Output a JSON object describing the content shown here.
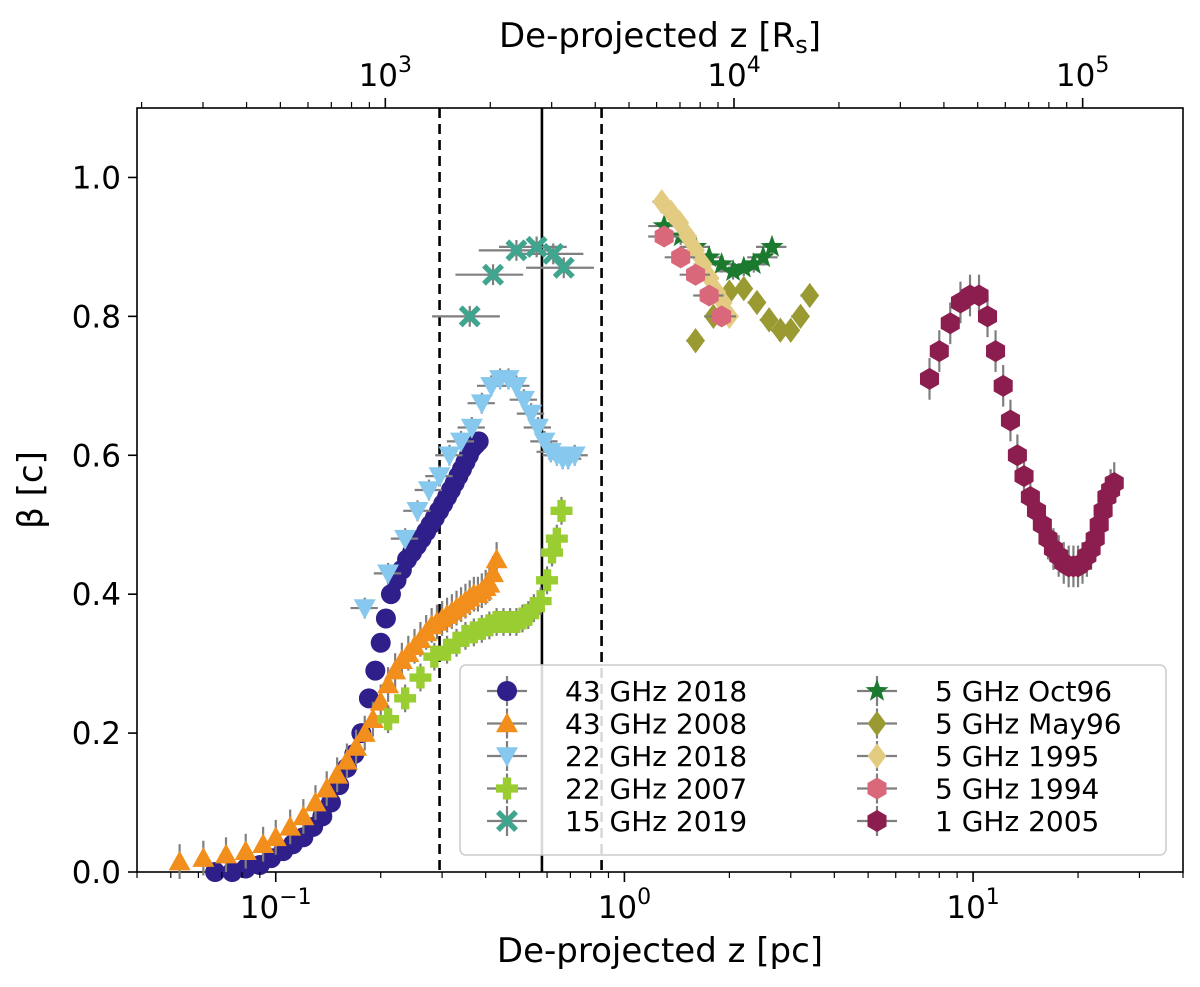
{
  "chart_data": {
    "type": "scatter",
    "xlabel": "De-projected z [pc]",
    "x2label_main": "De-projected z [R",
    "x2label_sub": "s",
    "x2label_end": "]",
    "ylabel": "β [c]",
    "xscale": "log",
    "xlim": [
      0.04,
      40
    ],
    "ylim": [
      0.0,
      1.1
    ],
    "x_ticks": [
      {
        "value": 0.1,
        "base": "10",
        "exp": "−1"
      },
      {
        "value": 1,
        "base": "10",
        "exp": "0"
      },
      {
        "value": 10,
        "base": "10",
        "exp": "1"
      }
    ],
    "top_axis_factor": 4850,
    "top_ticks": [
      {
        "value": 1000,
        "base": "10",
        "exp": "3"
      },
      {
        "value": 10000,
        "base": "10",
        "exp": "4"
      },
      {
        "value": 100000,
        "base": "10",
        "exp": "5"
      }
    ],
    "y_ticks": [
      "0.0",
      "0.2",
      "0.4",
      "0.6",
      "0.8",
      "1.0"
    ],
    "vlines": [
      {
        "x": 0.295,
        "style": "dashed"
      },
      {
        "x": 0.58,
        "style": "solid"
      },
      {
        "x": 0.86,
        "style": "dashed"
      }
    ],
    "legend_position": "lower-right",
    "series": [
      {
        "name": "43 GHz 2018",
        "color": "#2e1f8a",
        "marker": "circle",
        "x": [
          0.067,
          0.075,
          0.082,
          0.09,
          0.097,
          0.105,
          0.112,
          0.12,
          0.128,
          0.136,
          0.144,
          0.152,
          0.16,
          0.168,
          0.176,
          0.185,
          0.193,
          0.2,
          0.207,
          0.214,
          0.222,
          0.23,
          0.238,
          0.246,
          0.254,
          0.262,
          0.27,
          0.278,
          0.286,
          0.294,
          0.302,
          0.31,
          0.318,
          0.326,
          0.334,
          0.342,
          0.35,
          0.358,
          0.366,
          0.374,
          0.382
        ],
        "y": [
          0.0,
          0.0,
          0.005,
          0.01,
          0.02,
          0.03,
          0.04,
          0.05,
          0.065,
          0.08,
          0.1,
          0.125,
          0.15,
          0.17,
          0.2,
          0.25,
          0.29,
          0.33,
          0.365,
          0.4,
          0.42,
          0.435,
          0.45,
          0.46,
          0.47,
          0.48,
          0.49,
          0.5,
          0.51,
          0.52,
          0.53,
          0.54,
          0.55,
          0.56,
          0.57,
          0.58,
          0.59,
          0.6,
          0.61,
          0.615,
          0.62
        ],
        "xerr_frac": 0.0,
        "yerr": 0.012
      },
      {
        "name": "43 GHz 2008",
        "color": "#f28e1c",
        "marker": "triangle-up",
        "x": [
          0.053,
          0.062,
          0.072,
          0.082,
          0.092,
          0.1,
          0.11,
          0.12,
          0.13,
          0.14,
          0.15,
          0.16,
          0.17,
          0.18,
          0.19,
          0.2,
          0.21,
          0.22,
          0.23,
          0.24,
          0.25,
          0.26,
          0.27,
          0.28,
          0.29,
          0.3,
          0.31,
          0.32,
          0.33,
          0.34,
          0.35,
          0.36,
          0.37,
          0.38,
          0.39,
          0.4,
          0.41,
          0.42,
          0.43
        ],
        "y": [
          0.015,
          0.02,
          0.025,
          0.03,
          0.04,
          0.05,
          0.065,
          0.08,
          0.1,
          0.12,
          0.14,
          0.16,
          0.18,
          0.2,
          0.22,
          0.245,
          0.27,
          0.29,
          0.305,
          0.315,
          0.325,
          0.335,
          0.345,
          0.355,
          0.36,
          0.365,
          0.37,
          0.375,
          0.38,
          0.385,
          0.39,
          0.395,
          0.4,
          0.4,
          0.405,
          0.41,
          0.415,
          0.43,
          0.45
        ],
        "xerr_frac": 0.0,
        "yerr": 0.025
      },
      {
        "name": "22 GHz 2018",
        "color": "#87c8ee",
        "marker": "triangle-down",
        "x": [
          0.18,
          0.21,
          0.235,
          0.255,
          0.275,
          0.295,
          0.315,
          0.34,
          0.365,
          0.39,
          0.415,
          0.44,
          0.465,
          0.49,
          0.515,
          0.54,
          0.565,
          0.59,
          0.615,
          0.64,
          0.665,
          0.69,
          0.72
        ],
        "y": [
          0.38,
          0.43,
          0.48,
          0.52,
          0.55,
          0.57,
          0.6,
          0.62,
          0.64,
          0.675,
          0.7,
          0.71,
          0.71,
          0.7,
          0.68,
          0.66,
          0.64,
          0.62,
          0.605,
          0.6,
          0.595,
          0.595,
          0.6
        ],
        "xerr_frac": 0.09,
        "yerr": 0.015
      },
      {
        "name": "22 GHz 2007",
        "color": "#9acd32",
        "marker": "plus",
        "x": [
          0.21,
          0.235,
          0.26,
          0.285,
          0.31,
          0.33,
          0.35,
          0.37,
          0.39,
          0.41,
          0.43,
          0.45,
          0.47,
          0.49,
          0.51,
          0.53,
          0.55,
          0.575,
          0.6,
          0.62,
          0.64,
          0.66
        ],
        "y": [
          0.22,
          0.25,
          0.28,
          0.31,
          0.32,
          0.33,
          0.34,
          0.345,
          0.35,
          0.355,
          0.36,
          0.36,
          0.36,
          0.36,
          0.365,
          0.37,
          0.38,
          0.39,
          0.42,
          0.46,
          0.48,
          0.52
        ],
        "xerr_frac": 0.06,
        "yerr": 0.02
      },
      {
        "name": "15 GHz 2019",
        "color": "#3fa58f",
        "marker": "x",
        "x": [
          0.36,
          0.42,
          0.49,
          0.56,
          0.625,
          0.67
        ],
        "y": [
          0.8,
          0.86,
          0.895,
          0.9,
          0.89,
          0.87
        ],
        "xerr_frac": 0.22,
        "yerr": 0.015
      },
      {
        "name": "5 GHz Oct96",
        "color": "#1b7a2e",
        "marker": "star",
        "x": [
          1.3,
          1.45,
          1.6,
          1.75,
          1.9,
          2.05,
          2.2,
          2.35,
          2.5,
          2.65
        ],
        "y": [
          0.93,
          0.915,
          0.9,
          0.885,
          0.875,
          0.865,
          0.87,
          0.875,
          0.885,
          0.9
        ],
        "xerr_frac": 0.1,
        "yerr": 0.012
      },
      {
        "name": "5 GHz May96",
        "color": "#9a9a32",
        "marker": "diamond",
        "x": [
          1.6,
          1.8,
          2.0,
          2.2,
          2.4,
          2.6,
          2.8,
          3.0,
          3.2,
          3.4
        ],
        "y": [
          0.765,
          0.8,
          0.835,
          0.84,
          0.82,
          0.795,
          0.78,
          0.78,
          0.8,
          0.83
        ],
        "xerr_frac": 0.06,
        "yerr": 0.012
      },
      {
        "name": "5 GHz 1995",
        "color": "#e3cc82",
        "marker": "diamond",
        "x": [
          1.28,
          1.36,
          1.44,
          1.52,
          1.6,
          1.68,
          1.76,
          1.84,
          1.92,
          2.0
        ],
        "y": [
          0.965,
          0.95,
          0.935,
          0.915,
          0.895,
          0.875,
          0.855,
          0.835,
          0.82,
          0.8
        ],
        "xerr_frac": 0.06,
        "yerr": 0.012
      },
      {
        "name": "5 GHz 1994",
        "color": "#d9687a",
        "marker": "hexagon",
        "x": [
          1.3,
          1.45,
          1.6,
          1.75,
          1.9
        ],
        "y": [
          0.915,
          0.885,
          0.86,
          0.83,
          0.8
        ],
        "xerr_frac": 0.1,
        "yerr": 0.012
      },
      {
        "name": "1 GHz 2005",
        "color": "#8c1d4f",
        "marker": "hexagon",
        "x": [
          7.5,
          8.0,
          8.6,
          9.2,
          9.8,
          10.4,
          11.0,
          11.6,
          12.2,
          12.8,
          13.4,
          14.0,
          14.6,
          15.2,
          15.8,
          16.4,
          17.0,
          17.6,
          18.2,
          18.8,
          19.4,
          20.0,
          20.6,
          21.2,
          21.8,
          22.4,
          23.0,
          23.6,
          24.2,
          24.8,
          25.4
        ],
        "y": [
          0.71,
          0.75,
          0.79,
          0.82,
          0.83,
          0.83,
          0.8,
          0.75,
          0.7,
          0.65,
          0.6,
          0.57,
          0.54,
          0.52,
          0.5,
          0.48,
          0.465,
          0.455,
          0.445,
          0.44,
          0.44,
          0.44,
          0.445,
          0.455,
          0.465,
          0.48,
          0.5,
          0.52,
          0.54,
          0.55,
          0.56
        ],
        "xerr_frac": 0.0,
        "yerr": 0.03
      }
    ]
  }
}
